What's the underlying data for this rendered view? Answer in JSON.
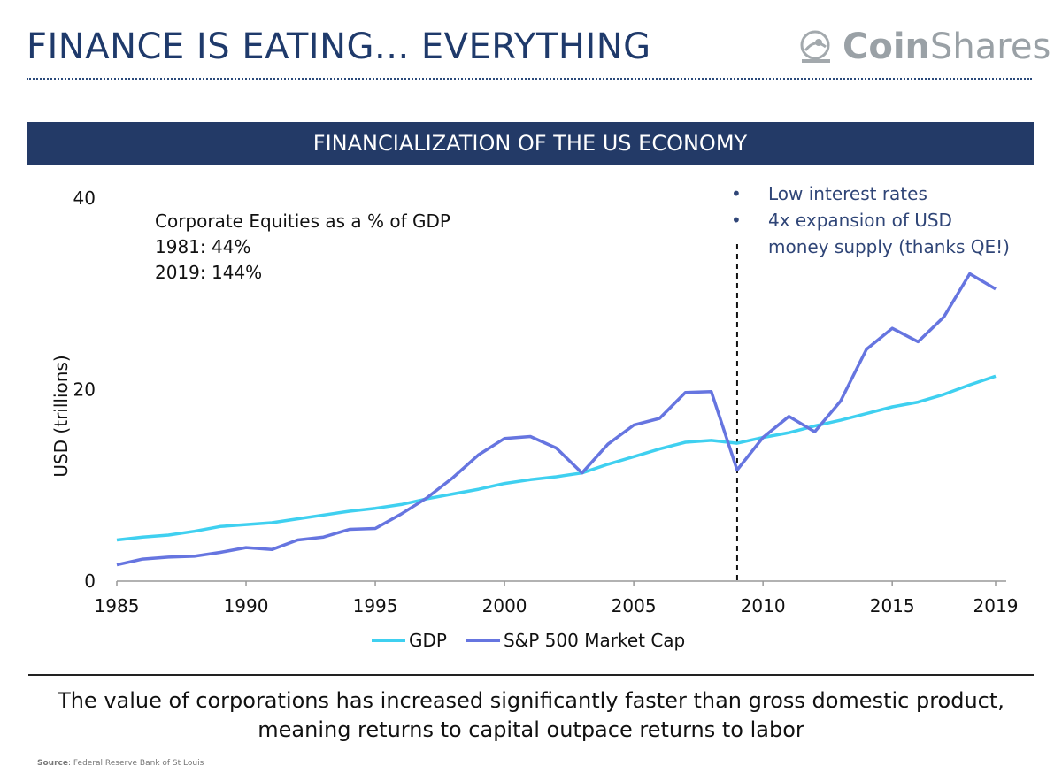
{
  "header": {
    "title": "FINANCE IS EATING... EVERYTHING",
    "logo_bold": "Coin",
    "logo_light": "Shares"
  },
  "banner": {
    "text": "FINANCIALIZATION OF THE US ECONOMY"
  },
  "annotation": {
    "line1": "Corporate Equities as a % of GDP",
    "line2": "1981: 44%",
    "line3": "2019: 144%"
  },
  "bullets": {
    "b1": "Low interest rates",
    "b2_line1": "4x expansion of USD",
    "b2_line2": "money supply (thanks QE!)",
    "marker": "•"
  },
  "caption": {
    "line1": "The value of corporations has increased significantly faster than gross domestic product,",
    "line2": "meaning returns to capital outpace returns to labor"
  },
  "source": {
    "label": "Source",
    "text": ": Federal Reserve Bank of St Louis"
  },
  "chart_data": {
    "type": "line",
    "title": "FINANCIALIZATION OF THE US ECONOMY",
    "ylabel": "USD (trillions)",
    "xlabel": "",
    "xlim": [
      1985,
      2019
    ],
    "ylim": [
      0,
      40
    ],
    "yticks": [
      "0",
      "20",
      "40"
    ],
    "xticks": [
      "1985",
      "1990",
      "1995",
      "2000",
      "2005",
      "2010",
      "2015",
      "2019"
    ],
    "xtick_values": [
      1985,
      1990,
      1995,
      2000,
      2005,
      2010,
      2015,
      2019
    ],
    "ytick_values": [
      0,
      20,
      40
    ],
    "vline_x": 2009,
    "legend_position": "bottom",
    "series": [
      {
        "name": "GDP",
        "color": "#3fd0f0",
        "x": [
          1985,
          1986,
          1987,
          1988,
          1989,
          1990,
          1991,
          1992,
          1993,
          1994,
          1995,
          1996,
          1997,
          1998,
          1999,
          2000,
          2001,
          2002,
          2003,
          2004,
          2005,
          2006,
          2007,
          2008,
          2009,
          2010,
          2011,
          2012,
          2013,
          2014,
          2015,
          2016,
          2017,
          2018,
          2019
        ],
        "values": [
          4.3,
          4.6,
          4.8,
          5.2,
          5.7,
          5.9,
          6.1,
          6.5,
          6.9,
          7.3,
          7.6,
          8.0,
          8.6,
          9.1,
          9.6,
          10.2,
          10.6,
          10.9,
          11.3,
          12.2,
          13.0,
          13.8,
          14.5,
          14.7,
          14.4,
          15.0,
          15.5,
          16.2,
          16.8,
          17.5,
          18.2,
          18.7,
          19.5,
          20.5,
          21.4
        ]
      },
      {
        "name": "S&P 500 Market Cap",
        "color": "#6675e0",
        "x": [
          1985,
          1986,
          1987,
          1988,
          1989,
          1990,
          1991,
          1992,
          1993,
          1994,
          1995,
          1996,
          1997,
          1998,
          1999,
          2000,
          2001,
          2002,
          2003,
          2004,
          2005,
          2006,
          2007,
          2008,
          2009,
          2010,
          2011,
          2012,
          2013,
          2014,
          2015,
          2016,
          2017,
          2018,
          2019
        ],
        "values": [
          1.7,
          2.3,
          2.5,
          2.6,
          3.0,
          3.5,
          3.3,
          4.3,
          4.6,
          5.4,
          5.5,
          7.0,
          8.7,
          10.8,
          13.2,
          14.9,
          15.1,
          13.9,
          11.3,
          14.3,
          16.3,
          17.0,
          19.7,
          19.8,
          11.6,
          15.0,
          17.2,
          15.6,
          18.8,
          24.2,
          26.4,
          25.0,
          27.6,
          32.1,
          30.5
        ]
      }
    ]
  }
}
